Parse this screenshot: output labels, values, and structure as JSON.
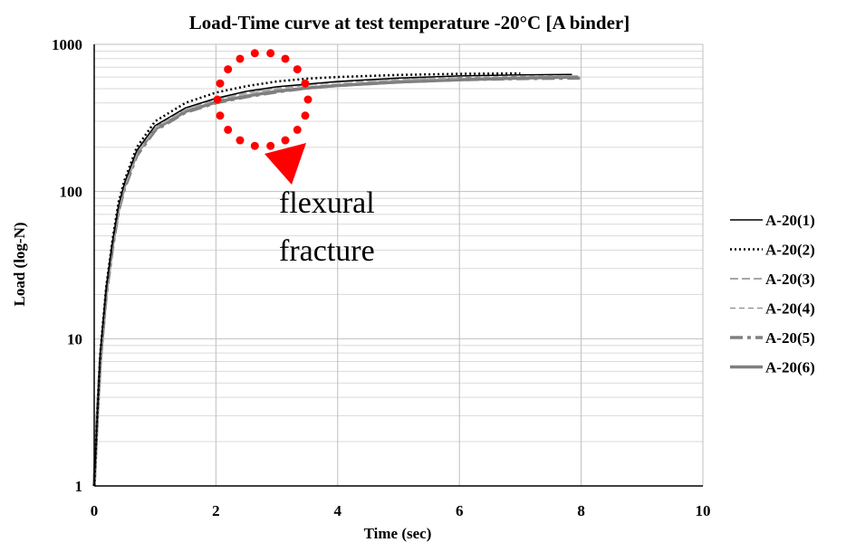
{
  "chart_data": {
    "type": "line",
    "title": "Load-Time curve at test temperature -20°C [A binder]",
    "xlabel": "Time (sec)",
    "ylabel": "Load (log-N)",
    "xlim": [
      0,
      10
    ],
    "ylim": [
      1,
      1000
    ],
    "yscale": "log",
    "grid": true,
    "legend_position": "right",
    "x_ticks": [
      "0",
      "2",
      "4",
      "6",
      "8",
      "10"
    ],
    "y_ticks": [
      "1",
      "10",
      "100",
      "1000"
    ],
    "annotation": {
      "text_lines": [
        "flexural",
        "fracture"
      ],
      "marker": "red dotted circle with arrow",
      "color": "#ff0000"
    },
    "series": [
      {
        "name": "A-20(1)",
        "color": "#000000",
        "style": "solid-thin",
        "x": [
          0,
          0.05,
          0.1,
          0.2,
          0.3,
          0.4,
          0.5,
          0.7,
          1.0,
          1.5,
          2.0,
          2.5,
          3.0,
          4.0,
          5.0,
          6.0,
          7.0,
          7.85
        ],
        "y": [
          1,
          3,
          8,
          22,
          45,
          80,
          115,
          190,
          280,
          370,
          430,
          480,
          515,
          560,
          590,
          610,
          620,
          625
        ]
      },
      {
        "name": "A-20(2)",
        "color": "#000000",
        "style": "dotted",
        "x": [
          0,
          0.05,
          0.1,
          0.2,
          0.3,
          0.4,
          0.5,
          0.7,
          1.0,
          1.5,
          2.0,
          2.5,
          3.0,
          3.5,
          4.0,
          5.0,
          6.0,
          7.0
        ],
        "y": [
          1,
          3,
          8,
          23,
          47,
          85,
          120,
          200,
          300,
          400,
          470,
          520,
          560,
          585,
          600,
          620,
          630,
          635
        ]
      },
      {
        "name": "A-20(3)",
        "color": "#a6a6a6",
        "style": "dashed",
        "x": [
          0,
          0.05,
          0.1,
          0.2,
          0.3,
          0.4,
          0.5,
          0.7,
          1.0,
          1.5,
          2.0,
          2.5,
          3.0,
          3.5,
          4.0,
          5.0,
          6.0
        ],
        "y": [
          1,
          3,
          7,
          20,
          42,
          75,
          108,
          180,
          270,
          360,
          420,
          465,
          500,
          530,
          550,
          575,
          590
        ]
      },
      {
        "name": "A-20(4)",
        "color": "#8c8c8c",
        "style": "dashed-thin",
        "x": [
          0,
          0.05,
          0.1,
          0.2,
          0.3,
          0.4,
          0.5,
          0.7,
          1.0,
          1.5,
          2.0,
          2.5,
          3.0,
          3.5,
          4.0,
          5.0,
          6.0,
          7.0,
          7.9
        ],
        "y": [
          1,
          3,
          7,
          21,
          44,
          78,
          112,
          185,
          275,
          365,
          425,
          470,
          505,
          535,
          555,
          580,
          595,
          605,
          610
        ]
      },
      {
        "name": "A-20(5)",
        "color": "#808080",
        "style": "dash-dot-thick",
        "x": [
          0,
          0.05,
          0.1,
          0.2,
          0.3,
          0.4,
          0.5,
          0.7,
          1.0,
          1.5,
          2.0,
          2.5,
          3.0,
          3.5,
          4.0,
          5.0,
          6.0,
          7.0,
          8.0
        ],
        "y": [
          1,
          3,
          7,
          20,
          41,
          74,
          105,
          175,
          260,
          345,
          400,
          440,
          475,
          505,
          525,
          555,
          575,
          585,
          590
        ]
      },
      {
        "name": "A-20(6)",
        "color": "#7f7f7f",
        "style": "solid-thick",
        "x": [
          0,
          0.05,
          0.1,
          0.2,
          0.3,
          0.4,
          0.5,
          0.7,
          1.0,
          1.5,
          2.0,
          2.5,
          3.0,
          3.5,
          4.0,
          5.0,
          6.0,
          7.0,
          7.95
        ],
        "y": [
          1,
          3,
          7,
          21,
          43,
          76,
          110,
          182,
          265,
          350,
          405,
          445,
          480,
          505,
          525,
          555,
          575,
          590,
          600
        ]
      }
    ]
  }
}
